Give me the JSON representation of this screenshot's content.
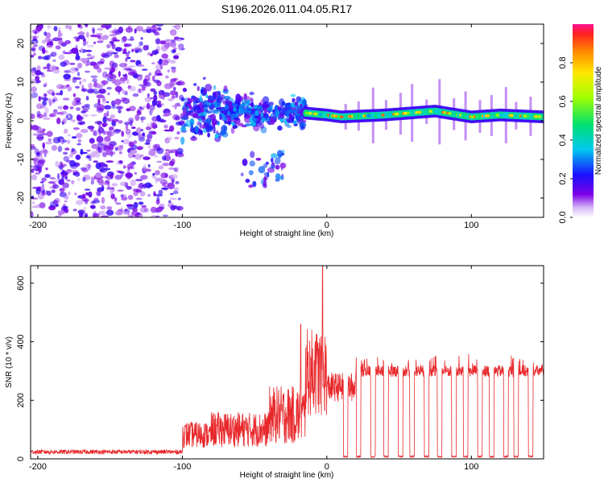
{
  "figure": {
    "title": "S196.2026.011.04.05.R17"
  },
  "colors": {
    "snr_line": "#e8282b",
    "frame": "#000000"
  },
  "chart_data": [
    {
      "type": "heatmap",
      "name": "spectrogram",
      "title": "S196.2026.011.04.05.R17",
      "xlabel": "Height of straight line (km)",
      "ylabel": "Frequency (Hz)",
      "xlim": [
        -205,
        150
      ],
      "ylim": [
        -25,
        25
      ],
      "xticks": [
        -200,
        -100,
        0,
        100
      ],
      "yticks": [
        -20,
        -10,
        0,
        10,
        20
      ],
      "x_tick_labels": [
        "-200",
        "-100",
        "0",
        "100"
      ],
      "y_tick_labels": [
        "-20",
        "-10",
        "0",
        "10",
        "20"
      ],
      "colorbar": {
        "label": "Normalized spectral amplitude",
        "range": [
          0.0,
          1.0
        ],
        "ticks": [
          "0.0",
          "0.2",
          "0.4",
          "0.6",
          "0.8"
        ],
        "tick_values": [
          0.0,
          0.2,
          0.4,
          0.6,
          0.8
        ]
      },
      "regions": [
        {
          "name": "noise",
          "x_range": [
            -205,
            -100
          ],
          "freq_range": [
            -25,
            25
          ],
          "amplitude_range": [
            0.05,
            0.2
          ]
        },
        {
          "name": "transition",
          "x_range": [
            -100,
            -15
          ],
          "freq_range": [
            -8,
            10
          ],
          "amplitude_range": [
            0.1,
            0.35
          ]
        },
        {
          "name": "carrier",
          "x_range": [
            -15,
            150
          ],
          "freq_center": 1.5,
          "amplitude_range": [
            0.3,
            0.9
          ]
        }
      ],
      "carrier_line_hz": [
        {
          "x": -15,
          "f": 2.0
        },
        {
          "x": 0,
          "f": 1.5
        },
        {
          "x": 10,
          "f": 1.0
        },
        {
          "x": 40,
          "f": 1.5
        },
        {
          "x": 75,
          "f": 2.5
        },
        {
          "x": 100,
          "f": 1.0
        },
        {
          "x": 120,
          "f": 1.5
        },
        {
          "x": 150,
          "f": 1.0
        }
      ]
    },
    {
      "type": "line",
      "name": "snr",
      "xlabel": "Height of straight line (km)",
      "ylabel": "SNR (10 * v/v)",
      "xlim": [
        -205,
        150
      ],
      "ylim": [
        0,
        660
      ],
      "xticks": [
        -200,
        -100,
        0,
        100
      ],
      "yticks": [
        0,
        200,
        400,
        600
      ],
      "x_tick_labels": [
        "-200",
        "-100",
        "0",
        "100"
      ],
      "y_tick_labels": [
        "0",
        "200",
        "400",
        "600"
      ],
      "series": [
        {
          "name": "SNR",
          "segments": [
            {
              "x_range": [
                -205,
                -100
              ],
              "base": 20,
              "noise": 15
            },
            {
              "x_range": [
                -100,
                -80
              ],
              "base": 60,
              "noise": 90
            },
            {
              "x_range": [
                -80,
                -40
              ],
              "base": 70,
              "noise": 120
            },
            {
              "x_range": [
                -40,
                -15
              ],
              "base": 100,
              "noise": 200
            },
            {
              "x_range": [
                -15,
                0
              ],
              "base": 220,
              "noise": 300
            },
            {
              "x_range": [
                0,
                20
              ],
              "base": 220,
              "noise": 100
            },
            {
              "x_range": [
                20,
                150
              ],
              "base": 290,
              "noise": 40
            }
          ],
          "peaks": [
            {
              "x": -3,
              "y": 660
            },
            {
              "x": -18,
              "y": 460
            },
            {
              "x": -8,
              "y": 400
            }
          ],
          "dropouts_x": [
            13,
            22,
            32,
            41,
            51,
            59,
            69,
            78,
            88,
            96,
            106,
            114,
            124,
            131,
            141
          ]
        }
      ]
    }
  ]
}
